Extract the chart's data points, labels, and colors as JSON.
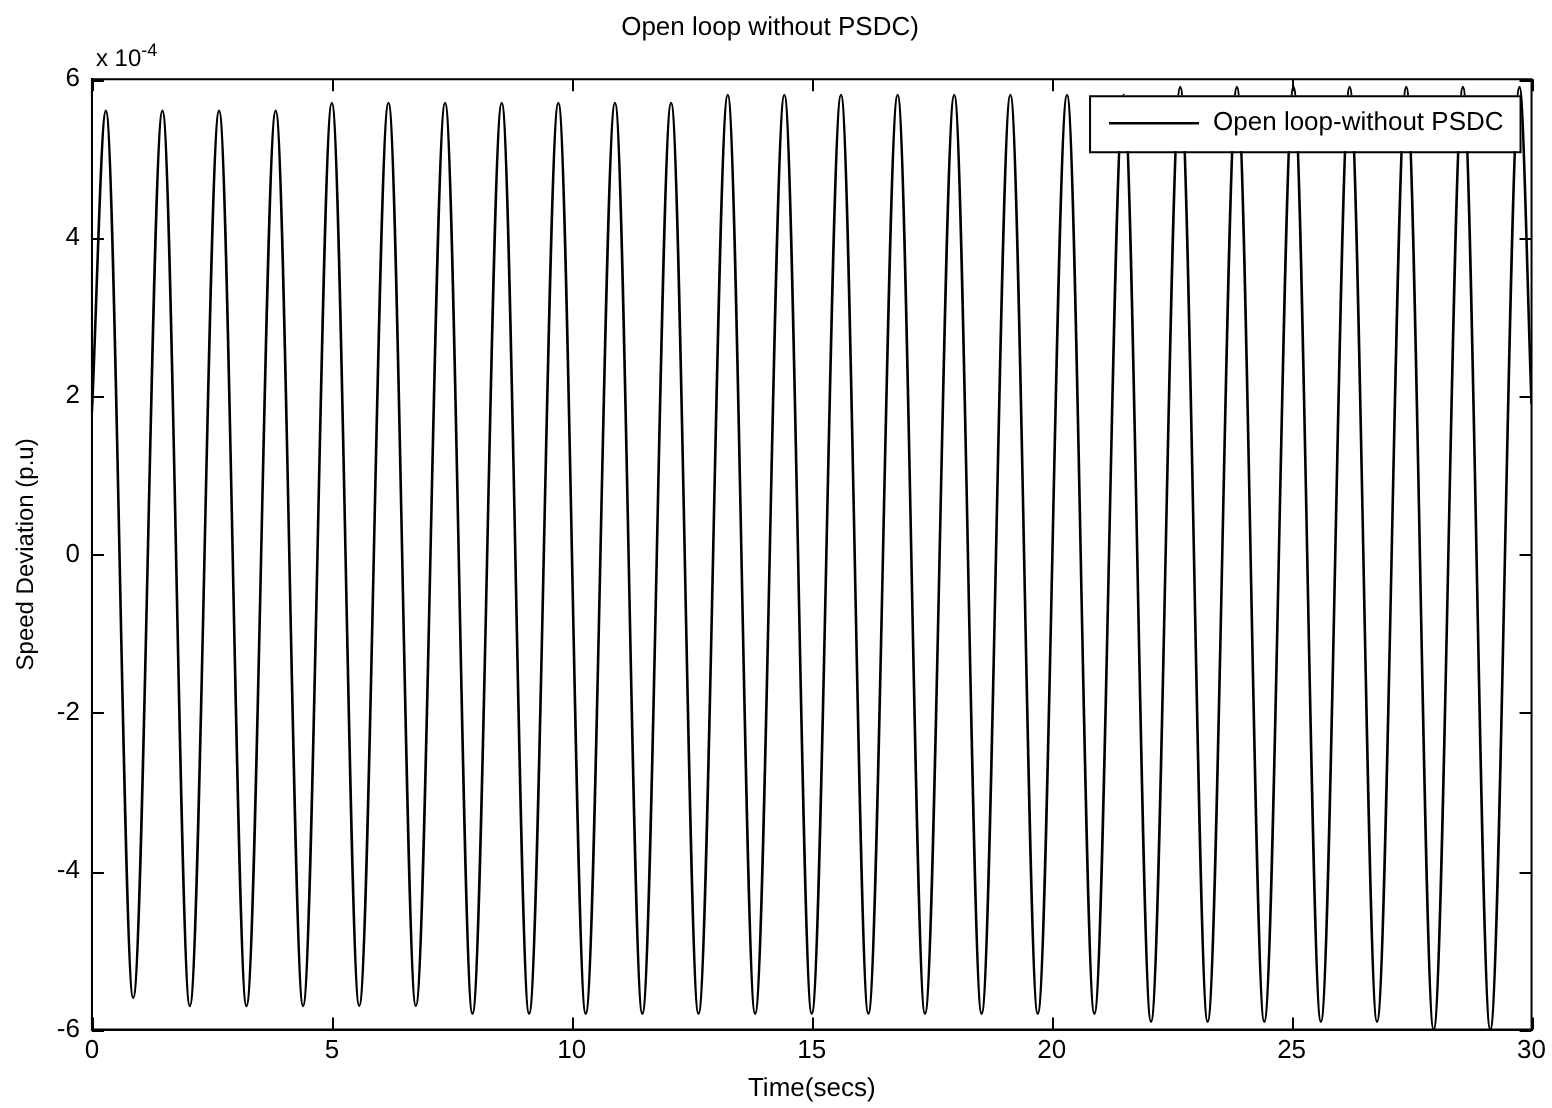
{
  "chart_data": {
    "type": "line",
    "title": "Open loop without PSDC)",
    "xlabel": "Time(secs)",
    "ylabel": "Speed Deviation (p.u)",
    "annotations": [
      "x 10$^{-4}$"
    ],
    "xlim": [
      0,
      30
    ],
    "xticks": [
      0,
      5,
      10,
      15,
      20,
      25,
      30
    ],
    "ylim": [
      -6,
      6
    ],
    "yticks": [
      -6,
      -4,
      -2,
      0,
      2,
      4,
      6
    ],
    "grid": false,
    "legend": "top right",
    "marker": "none",
    "line_style": "solid",
    "series": [
      {
        "name": "Open loop-without PSDC",
        "color": "#000000",
        "x": [
          0,
          0.29,
          0.86,
          1.47,
          2.04,
          2.65,
          3.22,
          3.83,
          4.4,
          5.0,
          5.57,
          6.18,
          6.75,
          7.36,
          7.93,
          8.54,
          9.11,
          9.72,
          10.29,
          10.9,
          11.47,
          12.07,
          12.64,
          13.25,
          13.82,
          14.43,
          15.0,
          15.61,
          16.18,
          16.79,
          17.36,
          17.97,
          18.54,
          19.14,
          19.71,
          20.32,
          20.89,
          21.5,
          22.07,
          22.68,
          23.25,
          23.86,
          24.43,
          25.04,
          25.61,
          26.21,
          26.78,
          27.39,
          27.96,
          28.57,
          29.14,
          29.75,
          30
        ],
        "values": [
          1.8,
          5.6,
          -5.6,
          5.6,
          -5.7,
          5.6,
          -5.7,
          5.6,
          -5.7,
          5.7,
          -5.7,
          5.7,
          -5.7,
          5.7,
          -5.8,
          5.7,
          -5.8,
          5.7,
          -5.8,
          5.7,
          -5.8,
          5.7,
          -5.8,
          5.8,
          -5.8,
          5.8,
          -5.8,
          5.8,
          -5.8,
          5.8,
          -5.8,
          5.8,
          -5.8,
          5.8,
          -5.8,
          5.8,
          -5.8,
          5.8,
          -5.9,
          5.9,
          -5.9,
          5.9,
          -5.9,
          5.9,
          -5.9,
          5.9,
          -5.9,
          5.9,
          -6.0,
          5.9,
          -6.0,
          5.9,
          1.9
        ]
      }
    ]
  }
}
